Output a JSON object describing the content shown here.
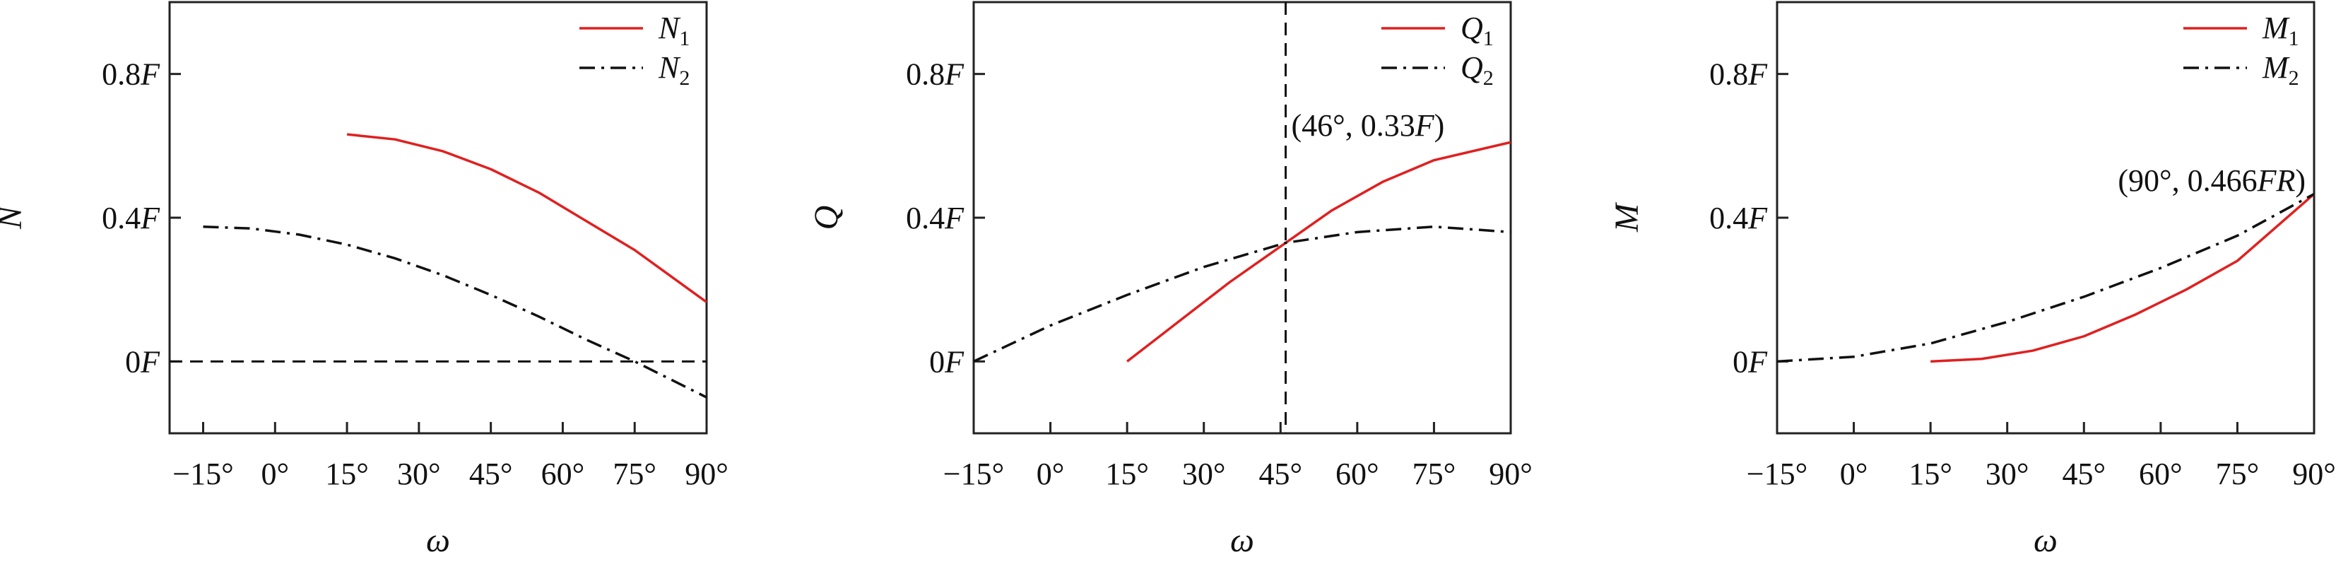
{
  "colors": {
    "red": "#e02020",
    "black": "#111111"
  },
  "chart_data": [
    {
      "type": "line",
      "ylabel": "N",
      "xlabel": "ω",
      "xlim": [
        -22,
        90
      ],
      "ylim": [
        -0.2,
        1.0
      ],
      "xticks": [
        -15,
        0,
        15,
        30,
        45,
        60,
        75,
        90
      ],
      "xtick_labels": [
        "−15°",
        "0°",
        "15°",
        "30°",
        "45°",
        "60°",
        "75°",
        "90°"
      ],
      "yticks": [
        0,
        0.4,
        0.8
      ],
      "ytick_labels": [
        "0F",
        "0.4F",
        "0.8F"
      ],
      "legend_position": "top-right",
      "series": [
        {
          "name": "N",
          "sub": "1",
          "style": "solid",
          "color": "#e02020",
          "x": [
            15,
            25,
            35,
            45,
            55,
            65,
            75,
            90
          ],
          "y": [
            0.632,
            0.618,
            0.585,
            0.535,
            0.47,
            0.39,
            0.31,
            0.165
          ]
        },
        {
          "name": "N",
          "sub": "2",
          "style": "dashdot",
          "color": "#111111",
          "x": [
            -15,
            -5,
            5,
            15,
            25,
            35,
            45,
            55,
            65,
            75,
            90
          ],
          "y": [
            0.375,
            0.37,
            0.353,
            0.325,
            0.287,
            0.24,
            0.185,
            0.125,
            0.06,
            0.0,
            -0.1
          ]
        }
      ],
      "reference_lines": [
        {
          "orientation": "horizontal",
          "value": 0,
          "style": "dashed"
        }
      ],
      "annotations": []
    },
    {
      "type": "line",
      "ylabel": "Q",
      "xlabel": "ω",
      "xlim": [
        -15,
        90
      ],
      "ylim": [
        -0.2,
        1.0
      ],
      "xticks": [
        -15,
        0,
        15,
        30,
        45,
        60,
        75,
        90
      ],
      "xtick_labels": [
        "−15°",
        "0°",
        "15°",
        "30°",
        "45°",
        "60°",
        "75°",
        "90°"
      ],
      "yticks": [
        0,
        0.4,
        0.8
      ],
      "ytick_labels": [
        "0F",
        "0.4F",
        "0.8F"
      ],
      "legend_position": "top-right",
      "series": [
        {
          "name": "Q",
          "sub": "1",
          "style": "solid",
          "color": "#e02020",
          "x": [
            15,
            25,
            35,
            46,
            55,
            65,
            75,
            90
          ],
          "y": [
            0.0,
            0.11,
            0.22,
            0.33,
            0.42,
            0.5,
            0.56,
            0.61
          ]
        },
        {
          "name": "Q",
          "sub": "2",
          "style": "dashdot",
          "color": "#111111",
          "x": [
            -15,
            0,
            15,
            30,
            46,
            60,
            75,
            90
          ],
          "y": [
            0.0,
            0.1,
            0.185,
            0.263,
            0.33,
            0.36,
            0.375,
            0.36
          ]
        }
      ],
      "reference_lines": [
        {
          "orientation": "vertical",
          "value": 46,
          "style": "dashed"
        }
      ],
      "annotations": [
        {
          "prefix": "(46°, 0.33",
          "italic": "F",
          "suffix": ")",
          "x": 46,
          "y": 0.33
        }
      ]
    },
    {
      "type": "line",
      "ylabel": "M",
      "xlabel": "ω",
      "xlim": [
        -15,
        90
      ],
      "ylim": [
        -0.2,
        1.0
      ],
      "xticks": [
        -15,
        0,
        15,
        30,
        45,
        60,
        75,
        90
      ],
      "xtick_labels": [
        "−15°",
        "0°",
        "15°",
        "30°",
        "45°",
        "60°",
        "75°",
        "90°"
      ],
      "yticks": [
        0,
        0.4,
        0.8
      ],
      "ytick_labels": [
        "0F",
        "0.4F",
        "0.8F"
      ],
      "legend_position": "top-right",
      "series": [
        {
          "name": "M",
          "sub": "1",
          "style": "solid",
          "color": "#e02020",
          "x": [
            15,
            25,
            35,
            45,
            55,
            65,
            75,
            90
          ],
          "y": [
            0.0,
            0.007,
            0.03,
            0.07,
            0.13,
            0.2,
            0.28,
            0.466
          ]
        },
        {
          "name": "M",
          "sub": "2",
          "style": "dashdot",
          "color": "#111111",
          "x": [
            -15,
            0,
            15,
            30,
            45,
            60,
            75,
            90
          ],
          "y": [
            0.0,
            0.013,
            0.05,
            0.11,
            0.18,
            0.26,
            0.35,
            0.466
          ]
        }
      ],
      "reference_lines": [],
      "annotations": [
        {
          "prefix": "(90°, 0.466",
          "italic": "FR",
          "suffix": ")",
          "x": 90,
          "y": 0.466
        }
      ]
    }
  ]
}
